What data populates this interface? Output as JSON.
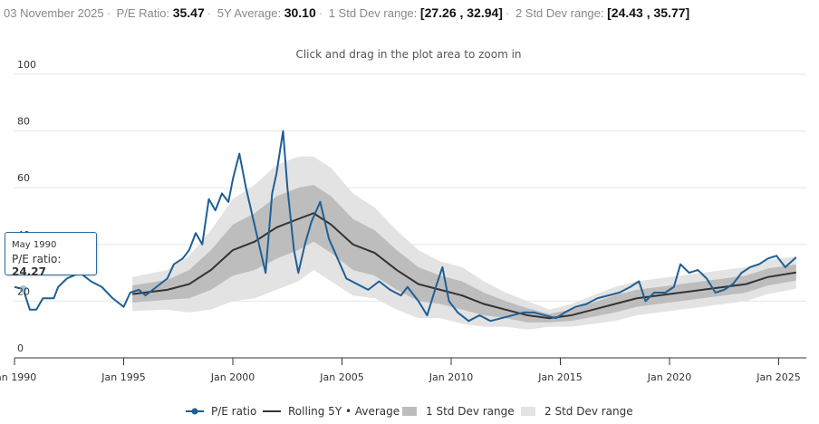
{
  "header": {
    "date": "03 November 2025",
    "pe_label": "P/E Ratio:",
    "pe_value": "35.47",
    "avg_label": "5Y Average:",
    "avg_value": "30.10",
    "sd1_label": "1 Std Dev range:",
    "sd1_value": "[27.26 , 32.94]",
    "sd2_label": "2 Std Dev range:",
    "sd2_value": "[24.43 , 35.77]"
  },
  "tooltip": {
    "date": "May 1990",
    "label": "P/E ratio:",
    "value": "24.27"
  },
  "chart_data": {
    "type": "line",
    "subtitle": "Click and drag in the plot area to zoom in",
    "ylim": [
      0,
      100
    ],
    "yticks": [
      "0",
      "20",
      "40",
      "60",
      "80",
      "100"
    ],
    "xlim": [
      1990,
      2026
    ],
    "xticks": [
      {
        "x": 1990,
        "label": "Jan 1990"
      },
      {
        "x": 1995,
        "label": "Jan 1995"
      },
      {
        "x": 2000,
        "label": "Jan 2000"
      },
      {
        "x": 2005,
        "label": "Jan 2005"
      },
      {
        "x": 2010,
        "label": "Jan 2010"
      },
      {
        "x": 2015,
        "label": "Jan 2015"
      },
      {
        "x": 2020,
        "label": "Jan 2020"
      },
      {
        "x": 2025,
        "label": "Jan 2025"
      }
    ],
    "grid": true,
    "legend_position": "bottom",
    "colors": {
      "pe": "#1f5f94",
      "avg": "#333333",
      "sd1": "#bdbdbd",
      "sd2": "#e3e3e3"
    },
    "legend": [
      "P/E ratio",
      "Rolling 5Y • Average",
      "1 Std Dev range",
      "2 Std Dev range"
    ],
    "pe": {
      "x": [
        1990,
        1990.4,
        1990.7,
        1991,
        1991.3,
        1991.8,
        1992,
        1992.4,
        1993,
        1993.5,
        1994,
        1994.5,
        1995,
        1995.3,
        1995.7,
        1996,
        1996.5,
        1997,
        1997.3,
        1997.7,
        1998,
        1998.3,
        1998.6,
        1998.9,
        1999.2,
        1999.5,
        1999.8,
        2000,
        2000.3,
        2000.6,
        2000.9,
        2001.2,
        2001.5,
        2001.8,
        2002,
        2002.3,
        2002.5,
        2002.8,
        2003,
        2003.3,
        2003.6,
        2004,
        2004.4,
        2004.8,
        2005.2,
        2005.7,
        2006.2,
        2006.7,
        2007.2,
        2007.7,
        2008,
        2008.5,
        2008.9,
        2009.3,
        2009.6,
        2009.9,
        2010.3,
        2010.8,
        2011.3,
        2011.8,
        2012.3,
        2012.8,
        2013.3,
        2013.8,
        2014.3,
        2014.8,
        2015.2,
        2015.7,
        2016.2,
        2016.7,
        2017.2,
        2017.7,
        2018.2,
        2018.6,
        2018.9,
        2019.3,
        2019.8,
        2020.2,
        2020.5,
        2020.9,
        2021.3,
        2021.7,
        2022.1,
        2022.5,
        2022.9,
        2023.3,
        2023.7,
        2024.1,
        2024.5,
        2024.9,
        2025.3,
        2025.8
      ],
      "y": [
        25,
        24.27,
        17,
        17,
        21,
        21,
        25,
        28,
        30,
        27,
        25,
        21,
        18,
        23,
        24,
        22,
        25,
        28,
        33,
        35,
        38,
        44,
        40,
        56,
        52,
        58,
        55,
        63,
        72,
        60,
        50,
        40,
        30,
        58,
        65,
        80,
        60,
        38,
        30,
        40,
        48,
        55,
        42,
        35,
        28,
        26,
        24,
        27,
        24,
        22,
        25,
        20,
        15,
        25,
        32,
        20,
        16,
        13,
        15,
        13,
        14,
        15,
        16,
        16,
        15,
        14,
        16,
        18,
        19,
        21,
        22,
        23,
        25,
        27,
        20,
        23,
        23,
        25,
        33,
        30,
        31,
        28,
        23,
        24,
        26,
        30,
        32,
        33,
        35,
        36,
        32,
        35.47
      ]
    },
    "rolling": {
      "x": [
        1995.4,
        1997,
        1998,
        1999,
        2000,
        2001,
        2002,
        2003,
        2003.7,
        2004.5,
        2005.5,
        2006.5,
        2007.5,
        2008.5,
        2009.5,
        2010.5,
        2011.5,
        2012.5,
        2013.5,
        2014.5,
        2015.5,
        2016.5,
        2017.5,
        2018.5,
        2019.5,
        2020.5,
        2021.5,
        2022.5,
        2023.5,
        2024.5,
        2025.8
      ],
      "avg": [
        22.5,
        24,
        26,
        31,
        38,
        41,
        46,
        49,
        51,
        47,
        40,
        37,
        31,
        26,
        24,
        22,
        19,
        17,
        15,
        14,
        15,
        17,
        19,
        21,
        22,
        23,
        24,
        25,
        26,
        28.5,
        30.1
      ],
      "sd": [
        3,
        3.5,
        5,
        7,
        9,
        10,
        11,
        11,
        10,
        10,
        9,
        8,
        7,
        6,
        5,
        5,
        4,
        3,
        2.5,
        1.5,
        2,
        2.5,
        3,
        3,
        3,
        3,
        3,
        3,
        3,
        3,
        2.84
      ]
    }
  }
}
